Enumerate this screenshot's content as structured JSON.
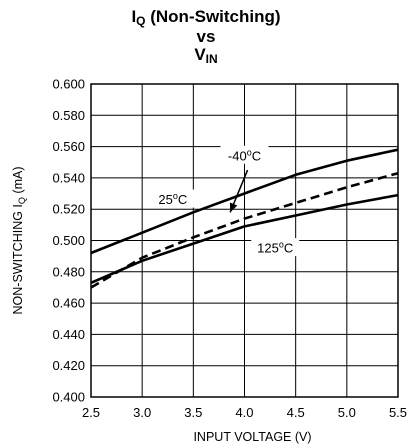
{
  "chart_data": {
    "type": "line",
    "title": {
      "line1_main": "I",
      "line1_sub": "Q",
      "line1_rest": " (Non-Switching)",
      "line2": "vs",
      "line3_main": "V",
      "line3_sub": "IN"
    },
    "xlabel": "INPUT VOLTAGE (V)",
    "ylabel": {
      "main": "NON-SWITCHING I",
      "sub": "Q",
      "rest": " (mA)"
    },
    "xlim": [
      2.5,
      5.5
    ],
    "ylim": [
      0.4,
      0.6
    ],
    "x_ticks": [
      "2.5",
      "3.0",
      "3.5",
      "4.0",
      "4.5",
      "5.0",
      "5.5"
    ],
    "x_tick_values": [
      2.5,
      3.0,
      3.5,
      4.0,
      4.5,
      5.0,
      5.5
    ],
    "y_ticks": [
      "0.400",
      "0.420",
      "0.440",
      "0.460",
      "0.480",
      "0.500",
      "0.520",
      "0.540",
      "0.560",
      "0.580",
      "0.600"
    ],
    "y_tick_values": [
      0.4,
      0.42,
      0.44,
      0.46,
      0.48,
      0.5,
      0.52,
      0.54,
      0.56,
      0.58,
      0.6
    ],
    "grid": true,
    "series": [
      {
        "name": "25°C",
        "style": "solid",
        "x": [
          2.5,
          3.0,
          3.5,
          4.0,
          4.5,
          5.0,
          5.5
        ],
        "y": [
          0.492,
          0.505,
          0.518,
          0.53,
          0.542,
          0.551,
          0.558
        ]
      },
      {
        "name": "-40°C",
        "style": "dashed",
        "x": [
          2.5,
          3.0,
          3.5,
          4.0,
          4.5,
          5.0,
          5.5
        ],
        "y": [
          0.47,
          0.489,
          0.502,
          0.514,
          0.524,
          0.534,
          0.543
        ]
      },
      {
        "name": "125°C",
        "style": "solid",
        "x": [
          2.5,
          3.0,
          3.5,
          4.0,
          4.5,
          5.0,
          5.5
        ],
        "y": [
          0.473,
          0.487,
          0.498,
          0.509,
          0.516,
          0.523,
          0.529
        ]
      }
    ],
    "annotations": [
      {
        "main": "-40",
        "sup": "o",
        "rest": "C",
        "x": 4.0,
        "y": 0.5535
      },
      {
        "main": "25",
        "sup": "o",
        "rest": "C",
        "x": 3.3,
        "y": 0.5255
      },
      {
        "main": "125",
        "sup": "o",
        "rest": "C",
        "x": 4.3,
        "y": 0.4945
      }
    ],
    "arrow": {
      "from_x": 4.03,
      "from_y": 0.545,
      "to_x": 3.86,
      "to_y": 0.518
    },
    "line_colors": {
      "stroke": "#000000",
      "grid": "#000000"
    }
  }
}
